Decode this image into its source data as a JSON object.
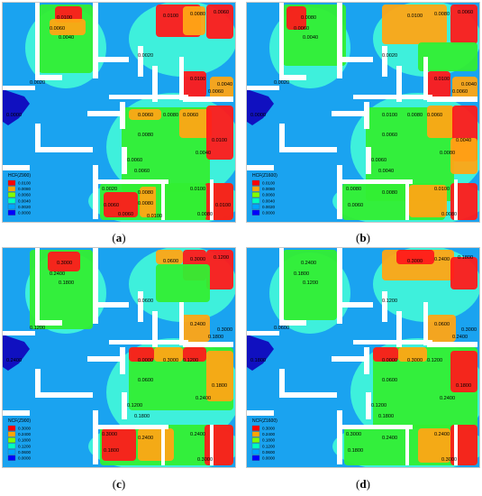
{
  "panels": [
    {
      "id": "a",
      "caption": "a",
      "legend_title": "HCF(Z900)",
      "legend_values": [
        "0.0100",
        "0.0080",
        "0.0060",
        "0.0040",
        "0.0020",
        "0.0000"
      ],
      "contour_labels": [
        "0.0100",
        "0.0060",
        "0.0040",
        "0.0020",
        "0.0100",
        "0.0080",
        "0.0060",
        "0.0020",
        "0.0100",
        "0.0040",
        "0.0060",
        "0.0000",
        "0.0060",
        "0.0080",
        "0.0060",
        "0.0100",
        "0.0040",
        "0.0080",
        "0.0060",
        "0.0060",
        "0.0020",
        "0.0080",
        "0.0060",
        "0.0100",
        "0.0080",
        "0.0060",
        "0.0080",
        "0.0100",
        "0.0100"
      ]
    },
    {
      "id": "b",
      "caption": "b",
      "legend_title": "HCF(Z1600)",
      "legend_values": [
        "0.0100",
        "0.0080",
        "0.0060",
        "0.0040",
        "0.0020",
        "0.0000"
      ],
      "contour_labels": [
        "0.0080",
        "0.0060",
        "0.0040",
        "0.0020",
        "0.0100",
        "0.0080",
        "0.0060",
        "0.0020",
        "0.0100",
        "0.0040",
        "0.0060",
        "0.0000",
        "0.0100",
        "0.0080",
        "0.0060",
        "0.0040",
        "0.0080",
        "0.0060",
        "0.0060",
        "0.0040",
        "0.0080",
        "0.0080",
        "0.0060",
        "0.0100",
        "0.0080"
      ]
    },
    {
      "id": "c",
      "caption": "c",
      "legend_title": "NCF(Z900)",
      "legend_values": [
        "0.3000",
        "0.2400",
        "0.1800",
        "0.1200",
        "0.0600",
        "0.0000"
      ],
      "contour_labels": [
        "0.3000",
        "0.2400",
        "0.1800",
        "0.1200",
        "0.0600",
        "0.3000",
        "0.1200",
        "0.0600",
        "0.2400",
        "0.3000",
        "0.1800",
        "0.2400",
        "0.0000",
        "0.3000",
        "0.1200",
        "0.1800",
        "0.2400",
        "0.0600",
        "0.1200",
        "0.1800",
        "0.3000",
        "0.2400",
        "0.1800",
        "0.2400",
        "0.3000"
      ]
    },
    {
      "id": "d",
      "caption": "d",
      "legend_title": "NCF(Z1600)",
      "legend_values": [
        "0.3000",
        "0.2400",
        "0.1800",
        "0.1200",
        "0.0600",
        "0.0000"
      ],
      "contour_labels": [
        "0.2400",
        "0.1800",
        "0.1200",
        "0.0600",
        "0.3000",
        "0.2400",
        "0.1800",
        "0.1200",
        "0.0600",
        "0.3000",
        "0.2400",
        "0.1800",
        "0.0000",
        "0.3000",
        "0.1200",
        "0.1800",
        "0.2400",
        "0.0600",
        "0.1200",
        "0.1800",
        "0.3000",
        "0.2400",
        "0.1800",
        "0.2400",
        "0.3000"
      ]
    }
  ],
  "legend_colors": [
    "#ff0000",
    "#ffa500",
    "#7fff00",
    "#00ffc0",
    "#00a5ff",
    "#0000ff"
  ],
  "map_colors": {
    "base": "#1aa3f0",
    "cyan": "#3ef0dc",
    "green": "#33ee33",
    "orange": "#ffa514",
    "red": "#ff1a1a",
    "blue": "#1010c0",
    "wall": "#ffffff"
  }
}
